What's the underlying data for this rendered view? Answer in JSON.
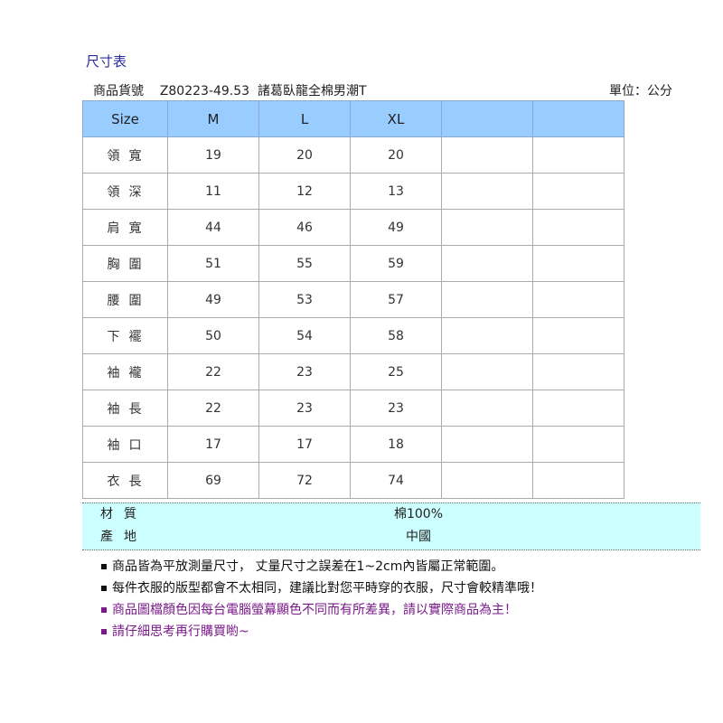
{
  "title": "尺寸表",
  "product": {
    "label": "商品貨號",
    "code": "Z80223-49.53",
    "name": "諸葛臥龍全棉男潮T",
    "unit": "單位：公分"
  },
  "table": {
    "headers": [
      "Size",
      "M",
      "L",
      "XL",
      "",
      ""
    ],
    "rows": [
      {
        "label": "領寬",
        "values": [
          "19",
          "20",
          "20",
          "",
          ""
        ]
      },
      {
        "label": "領深",
        "values": [
          "11",
          "12",
          "13",
          "",
          ""
        ]
      },
      {
        "label": "肩寬",
        "values": [
          "44",
          "46",
          "49",
          "",
          ""
        ]
      },
      {
        "label": "胸圍",
        "values": [
          "51",
          "55",
          "59",
          "",
          ""
        ]
      },
      {
        "label": "腰圍",
        "values": [
          "49",
          "53",
          "57",
          "",
          ""
        ]
      },
      {
        "label": "下襬",
        "values": [
          "50",
          "54",
          "58",
          "",
          ""
        ]
      },
      {
        "label": "袖襱",
        "values": [
          "22",
          "23",
          "25",
          "",
          ""
        ]
      },
      {
        "label": "袖長",
        "values": [
          "22",
          "23",
          "23",
          "",
          ""
        ]
      },
      {
        "label": "袖口",
        "values": [
          "17",
          "17",
          "18",
          "",
          ""
        ]
      },
      {
        "label": "衣長",
        "values": [
          "69",
          "72",
          "74",
          "",
          ""
        ]
      }
    ]
  },
  "details": [
    {
      "label": "材質",
      "value": "棉100%"
    },
    {
      "label": "產地",
      "value": "中國"
    }
  ],
  "notes": [
    {
      "text": "商品皆為平放測量尺寸， 丈量尺寸之誤差在1~2cm內皆屬正常範圍。",
      "color": "#111111"
    },
    {
      "text": "每件衣服的版型都會不太相同，建議比對您平時穿的衣服，尺寸會較精準哦！",
      "color": "#111111"
    },
    {
      "text": "商品圖檔顏色因每台電腦螢幕顯色不同而有所差異，請以實際商品為主！",
      "color": "#7a1a8a"
    },
    {
      "text": "請仔細思考再行購買喲~",
      "color": "#7a1a8a"
    }
  ]
}
